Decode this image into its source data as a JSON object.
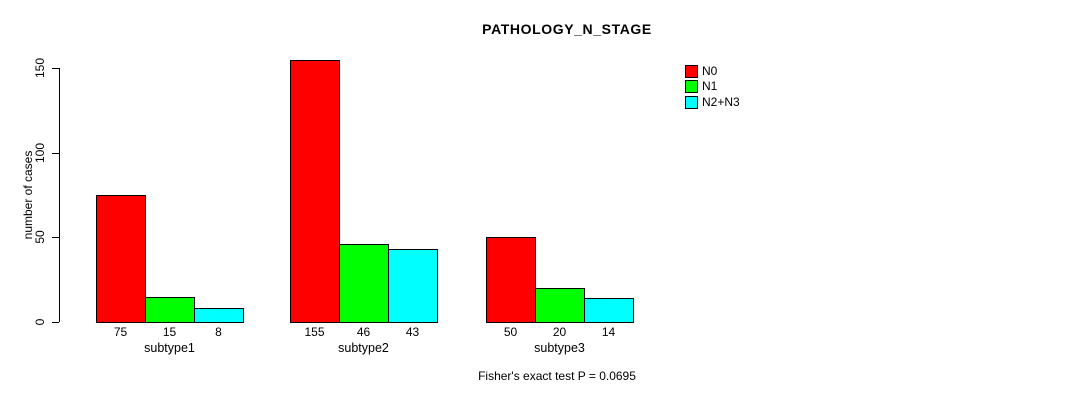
{
  "title": "PATHOLOGY_N_STAGE",
  "y_axis": {
    "label": "number of cases"
  },
  "legend": [
    {
      "label": "N0",
      "color": "#FF0000"
    },
    {
      "label": "N1",
      "color": "#00FF00"
    },
    {
      "label": "N2+N3",
      "color": "#00FFFF"
    }
  ],
  "footer": "Fisher's exact test P = 0.0695",
  "chart_data": {
    "type": "bar",
    "title": "PATHOLOGY_N_STAGE",
    "categories": [
      "subtype1",
      "subtype2",
      "subtype3"
    ],
    "series": [
      {
        "name": "N0",
        "color": "#FF0000",
        "values": [
          75,
          155,
          50
        ]
      },
      {
        "name": "N1",
        "color": "#00FF00",
        "values": [
          15,
          46,
          20
        ]
      },
      {
        "name": "N2+N3",
        "color": "#00FFFF",
        "values": [
          8,
          43,
          14
        ]
      }
    ],
    "value_labels_shown": true,
    "xlabel": "",
    "ylabel": "number of cases",
    "ylim": [
      0,
      150
    ],
    "yticks": [
      0,
      50,
      100,
      150
    ],
    "grid": false,
    "legend_position": "top-right",
    "annotation": "Fisher's exact test P = 0.0695"
  }
}
